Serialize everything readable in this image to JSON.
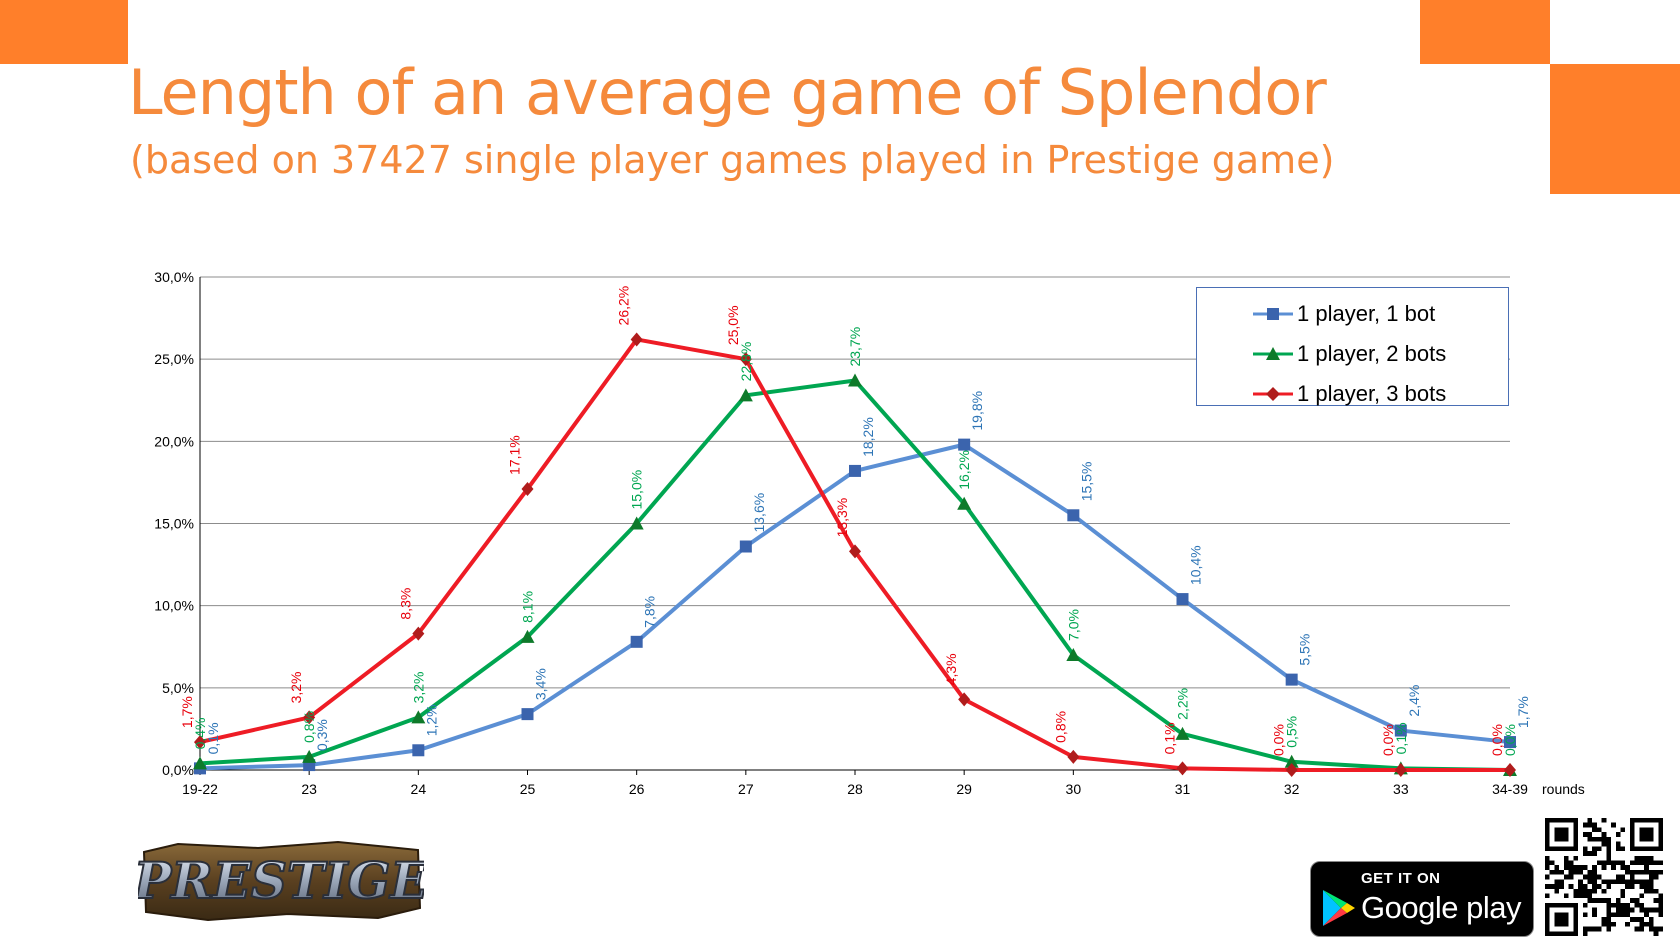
{
  "page": {
    "title": "Length of an average game of Splendor",
    "subtitle": "(based on 37427 single player games played in Prestige game)",
    "accent_color": "#ff7f2a"
  },
  "chart_data": {
    "type": "line",
    "categories": [
      "19-22",
      "23",
      "24",
      "25",
      "26",
      "27",
      "28",
      "29",
      "30",
      "31",
      "32",
      "33",
      "34-39"
    ],
    "xlabel": "rounds",
    "ylabel": "",
    "ylim": [
      0,
      30
    ],
    "yticks": [
      "0,0%",
      "5,0%",
      "10,0%",
      "15,0%",
      "20,0%",
      "25,0%",
      "30,0%"
    ],
    "grid": true,
    "legend_position": "top-right",
    "series": [
      {
        "name": "1 player, 1 bot",
        "color": "#5b8fd4",
        "label_color": "#2e75b6",
        "marker": "square",
        "values": [
          0.1,
          0.3,
          1.2,
          3.4,
          7.8,
          13.6,
          18.2,
          19.8,
          15.5,
          10.4,
          5.5,
          2.4,
          1.7
        ],
        "labels": [
          "0,1%",
          "0,3%",
          "1,2%",
          "3,4%",
          "7,8%",
          "13,6%",
          "18,2%",
          "19,8%",
          "15,5%",
          "10,4%",
          "5,5%",
          "2,4%",
          "1,7%"
        ]
      },
      {
        "name": "1 player, 2 bots",
        "color": "#00a651",
        "label_color": "#00a651",
        "marker": "triangle",
        "values": [
          0.4,
          0.8,
          3.2,
          8.1,
          15.0,
          22.8,
          23.7,
          16.2,
          7.0,
          2.2,
          0.5,
          0.1,
          0.0
        ],
        "labels": [
          "0,4%",
          "0,8%",
          "3,2%",
          "8,1%",
          "15,0%",
          "22,8%",
          "23,7%",
          "16,2%",
          "7,0%",
          "2,2%",
          "0,5%",
          "0,1%",
          "0,0%"
        ]
      },
      {
        "name": "1 player, 3 bots",
        "color": "#ee1c25",
        "label_color": "#e8000b",
        "marker": "diamond",
        "values": [
          1.7,
          3.2,
          8.3,
          17.1,
          26.2,
          25.0,
          13.3,
          4.3,
          0.8,
          0.1,
          0.0,
          0.0,
          0.0
        ],
        "labels": [
          "1,7%",
          "3,2%",
          "8,3%",
          "17,1%",
          "26,2%",
          "25,0%",
          "13,3%",
          "4,3%",
          "0,8%",
          "0,1%",
          "0,0%",
          "0,0%",
          "0,0%"
        ]
      }
    ]
  },
  "badges": {
    "logo_text": "PRESTIGE",
    "store_top": "GET IT ON",
    "store_name": "Google play"
  }
}
